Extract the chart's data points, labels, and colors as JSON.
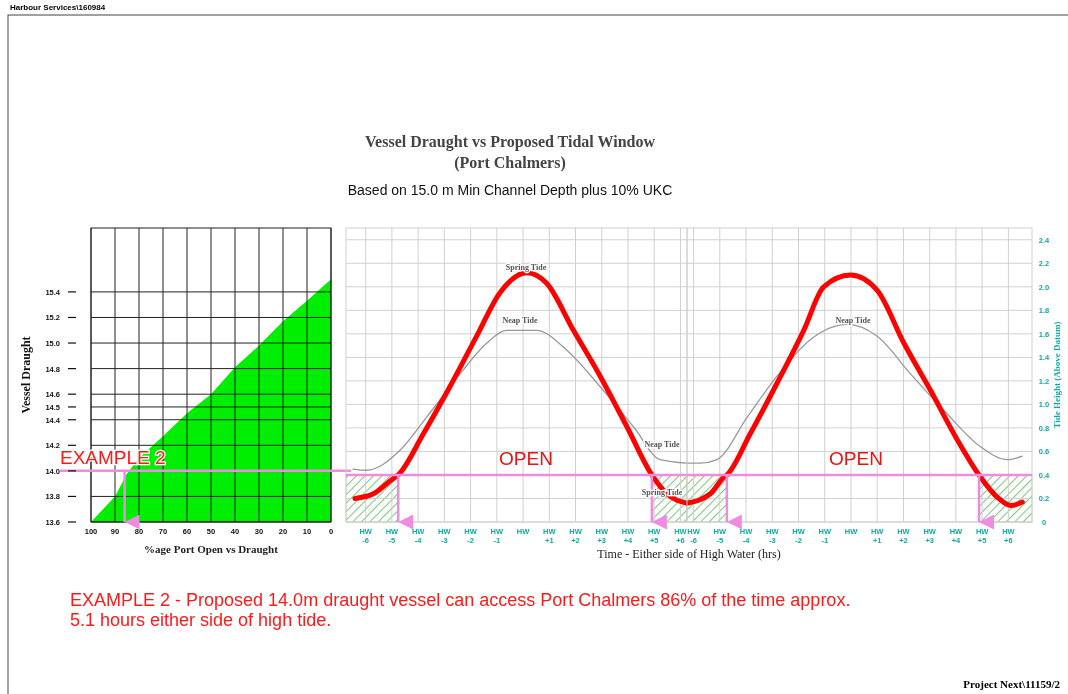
{
  "chart_data": [
    {
      "type": "area",
      "xlabel": "%age Port Open vs Draught",
      "ylabel": "Vessel Draught",
      "x": [
        100,
        90,
        85,
        80,
        70,
        60,
        50,
        40,
        30,
        20,
        10,
        0
      ],
      "values": [
        13.6,
        13.8,
        13.98,
        14.1,
        14.27,
        14.45,
        14.6,
        14.81,
        14.98,
        15.17,
        15.33,
        15.5
      ],
      "color": "#00ee00",
      "xlim": [
        100,
        0
      ],
      "xticks": [
        100,
        90,
        80,
        70,
        60,
        50,
        40,
        30,
        20,
        10,
        0
      ],
      "ylim": [
        13.6,
        15.9
      ],
      "yticks": [
        13.6,
        13.8,
        {
          "value": 14,
          "label": "14.0"
        },
        14.2,
        14.4,
        14.5,
        14.6,
        14.8,
        {
          "value": 15,
          "label": "15.0"
        },
        15.2,
        15.4
      ],
      "grid": true,
      "ref_lines": [
        {
          "axis": "y",
          "value": 14,
          "color": "#f08ce0"
        },
        {
          "axis": "x",
          "value": 86,
          "color": "#f08ce0"
        }
      ],
      "annotations": [
        "Harbour Services\\160984",
        "EXAMPLE 2",
        "EXAMPLE 2 - Proposed 14.0m draught vessel can access Port Chalmers 86% of the time approx.",
        "5.1 hours either side of high tide.",
        "Project Next\\11159/2"
      ]
    },
    {
      "type": "line",
      "title": "Vessel Draught  vs Proposed Tidal Window\n(Port Chalmers)",
      "subtitle": "Based on 15.0 m Min Channel Depth plus 10% UKC",
      "xlim": [
        -6.75,
        6.25
      ],
      "xticks": [
        {
          "value": -6,
          "label": "HW -6"
        },
        {
          "value": -5,
          "label": "HW -5"
        },
        {
          "value": -4,
          "label": "HW -4"
        },
        {
          "value": -3,
          "label": "HW -3"
        },
        {
          "value": -2,
          "label": "HW -2"
        },
        {
          "value": -1,
          "label": "HW -1"
        },
        {
          "value": 0,
          "label": "HW"
        },
        {
          "value": 1,
          "label": "HW +1"
        },
        {
          "value": 2,
          "label": "HW +2"
        },
        {
          "value": 3,
          "label": "HW +3"
        },
        {
          "value": 4,
          "label": "HW +4"
        },
        {
          "value": 5,
          "label": "HW +5"
        },
        {
          "value": 6,
          "label": "HW +6"
        }
      ],
      "ylim": [
        0,
        2.5
      ],
      "yticks": [
        0,
        0.2,
        0.4,
        0.6,
        0.8,
        1,
        1.2,
        1.4,
        1.6,
        1.8,
        2,
        2.2,
        2.4
      ],
      "tick_labels": "x",
      "grid": true,
      "series": [
        {
          "color": "#999999",
          "x": [
            -6.48,
            -5.97,
            -4.69,
            -3.68,
            -2.4,
            -1.39,
            -0.62,
            0.52,
            1.67,
            2.94,
            4.21,
            5.23,
            6.25
          ],
          "values": [
            0.45,
            0.44,
            0.61,
            0.89,
            1.26,
            1.52,
            1.63,
            1.63,
            1.46,
            1.15,
            0.81,
            0.53,
            0.5
          ]
        },
        {
          "color": "#ff0000",
          "x": [
            -6.41,
            -5.71,
            -5.01,
            -4.76,
            -3.8,
            -2.79,
            -1.77,
            -0.88,
            0.14,
            0.9,
            1.92,
            2.94,
            3.96,
            4.91,
            5.48,
            6.25
          ],
          "values": [
            0.2,
            0.24,
            0.36,
            0.4,
            0.75,
            1.15,
            1.58,
            1.95,
            2.12,
            2.03,
            1.63,
            1.24,
            0.81,
            0.4,
            0.24,
            0.16
          ]
        }
      ],
      "ref_lines": [
        {
          "axis": "y",
          "value": 0.4,
          "color": "#f08ce0"
        },
        {
          "axis": "x",
          "value": -4.76,
          "color": "#f08ce0"
        },
        {
          "axis": "x",
          "value": 4.91,
          "color": "#f08ce0"
        }
      ],
      "bands": [
        {
          "axis": "x",
          "from": -6.75,
          "to": -4.76,
          "color": "#7cc87c"
        },
        {
          "axis": "x",
          "from": 4.91,
          "to": 6.25,
          "color": "#7cc87c"
        }
      ],
      "annotations": [
        "Spring Tide",
        "Neap Tide",
        "Neap Tide",
        "Spring Tide",
        "OPEN"
      ]
    },
    {
      "type": "line",
      "xlabel": "Time - Either side of High Water (hrs)",
      "ylabel": "Tide Height (Above Datum)",
      "xlim": [
        -6.25,
        6.9
      ],
      "xticks": [
        {
          "value": -6,
          "label": "HW -6"
        },
        {
          "value": -5,
          "label": "HW -5"
        },
        {
          "value": -4,
          "label": "HW -4"
        },
        {
          "value": -3,
          "label": "HW -3"
        },
        {
          "value": -2,
          "label": "HW -2"
        },
        {
          "value": -1,
          "label": "HW -1"
        },
        {
          "value": 0,
          "label": "HW"
        },
        {
          "value": 1,
          "label": "HW +1"
        },
        {
          "value": 2,
          "label": "HW +2"
        },
        {
          "value": 3,
          "label": "HW +3"
        },
        {
          "value": 4,
          "label": "HW +4"
        },
        {
          "value": 5,
          "label": "HW +5"
        },
        {
          "value": 6,
          "label": "HW +6"
        }
      ],
      "ylim": [
        0,
        2.5
      ],
      "yticks": [
        0,
        0.2,
        0.4,
        0.6,
        0.8,
        {
          "value": 1,
          "label": "1.0"
        },
        1.2,
        1.4,
        1.6,
        1.8,
        {
          "value": 2,
          "label": "2.0"
        },
        2.2,
        2.4
      ],
      "grid": true,
      "series": [
        {
          "color": "#999999",
          "x": [
            -6.25,
            -5.74,
            -5.11,
            -3.96,
            -2.82,
            -1.55,
            -0.15,
            1,
            2.27,
            3.54,
            4.94,
            5.96,
            6.53
          ],
          "values": [
            0.5,
            0.5,
            0.53,
            0.89,
            1.24,
            1.55,
            1.68,
            1.58,
            1.26,
            0.95,
            0.64,
            0.53,
            0.56
          ]
        },
        {
          "color": "#ff0000",
          "x": [
            -6.25,
            -5.36,
            -4.85,
            -4.73,
            -3.84,
            -2.82,
            -1.8,
            -1.04,
            -0.02,
            1,
            2.02,
            3.03,
            4.05,
            4.88,
            5.58,
            6.09,
            6.53
          ],
          "values": [
            0.16,
            0.24,
            0.38,
            0.4,
            0.75,
            1.18,
            1.63,
            2,
            2.1,
            1.97,
            1.52,
            1.12,
            0.7,
            0.4,
            0.21,
            0.14,
            0.17
          ]
        }
      ],
      "ref_lines": [
        {
          "axis": "y",
          "value": 0.4,
          "color": "#f08ce0"
        },
        {
          "axis": "x",
          "value": -4.73,
          "color": "#f08ce0"
        },
        {
          "axis": "x",
          "value": 4.88,
          "color": "#f08ce0"
        }
      ],
      "bands": [
        {
          "axis": "x",
          "from": -6.25,
          "to": -4.73,
          "color": "#7cc87c"
        },
        {
          "axis": "x",
          "from": 4.88,
          "to": 6.9,
          "color": "#7cc87c"
        }
      ],
      "annotations": [
        "Neap Tide",
        "OPEN"
      ]
    }
  ]
}
